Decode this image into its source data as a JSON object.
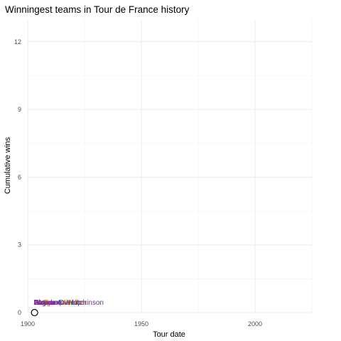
{
  "chart_data": {
    "type": "scatter",
    "title": "Winningest teams in Tour de France history",
    "xlabel": "Tour date",
    "ylabel": "Cumulative wins",
    "xlim": [
      1900,
      2025
    ],
    "ylim": [
      0,
      13
    ],
    "xticks": [
      1900,
      1950,
      2000
    ],
    "yticks": [
      0,
      3,
      6,
      9,
      12
    ],
    "grid": true,
    "legend": "none",
    "point": {
      "x": 1903,
      "y": 0
    },
    "team_labels": [
      {
        "text": "Peugeot–Wolber",
        "color": "#c0392b"
      },
      {
        "text": "La Française",
        "color": "#d35400"
      },
      {
        "text": "Alcyon",
        "color": "#7d6608"
      },
      {
        "text": "Automoto",
        "color": "#1e8449"
      },
      {
        "text": "Peugeot",
        "color": "#b9770e"
      },
      {
        "text": "Ganna",
        "color": "#2e4053"
      },
      {
        "text": "Alcyon–Dunlop",
        "color": "#1f618d"
      },
      {
        "text": "Automoto–Hutchinson",
        "color": "#6c3483"
      },
      {
        "text": "Legnano",
        "color": "#7030a0"
      },
      {
        "text": "Wonder",
        "color": "#9b27b0"
      }
    ]
  }
}
